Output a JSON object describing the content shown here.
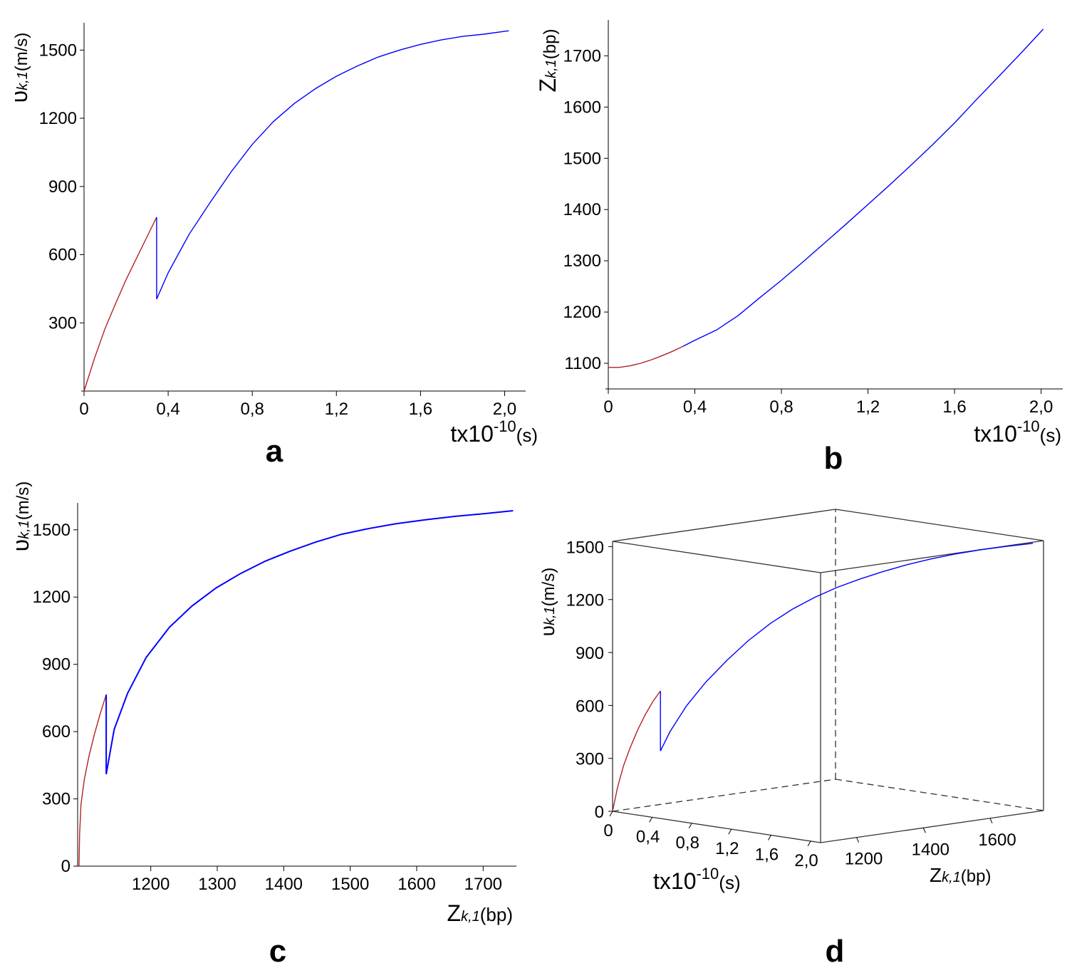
{
  "colors": {
    "phase1": "#b22222",
    "phase2": "#0000ff",
    "axis": "#000000"
  },
  "chart_data": [
    {
      "panel": "a",
      "type": "line",
      "xlabel": {
        "main": "tx10",
        "sup": "-10",
        "sub": "(s)"
      },
      "ylabel": {
        "main": "υ",
        "sub": "k,1",
        "unit": "(m/s)"
      },
      "xlim": [
        0,
        2.1
      ],
      "ylim": [
        0,
        1620
      ],
      "x_ticks": [
        0,
        0.4,
        0.8,
        1.2,
        1.6,
        2.0
      ],
      "x_tick_labels": [
        "0",
        "0,4",
        "0,8",
        "1,2",
        "1,6",
        "2,0"
      ],
      "y_ticks": [
        300,
        600,
        900,
        1200,
        1500
      ],
      "y_tick_labels": [
        "300",
        "600",
        "900",
        "1200",
        "1500"
      ],
      "series": [
        {
          "name": "phase1",
          "color_key": "phase1",
          "x": [
            0,
            0.05,
            0.1,
            0.15,
            0.2,
            0.25,
            0.3,
            0.345
          ],
          "y": [
            0,
            145,
            275,
            385,
            490,
            585,
            680,
            765
          ]
        },
        {
          "name": "phase2",
          "color_key": "phase2",
          "x": [
            0.345,
            0.345,
            0.4,
            0.5,
            0.6,
            0.7,
            0.8,
            0.9,
            1.0,
            1.1,
            1.2,
            1.3,
            1.4,
            1.5,
            1.6,
            1.7,
            1.8,
            1.9,
            2.02
          ],
          "y": [
            765,
            405,
            520,
            690,
            830,
            965,
            1085,
            1185,
            1265,
            1330,
            1385,
            1430,
            1470,
            1500,
            1525,
            1545,
            1560,
            1570,
            1585
          ]
        }
      ]
    },
    {
      "panel": "b",
      "type": "line",
      "xlabel": {
        "main": "tx10",
        "sup": "-10",
        "sub": "(s)"
      },
      "ylabel": {
        "main": "Z",
        "sub": "k,1",
        "unit": "(bp)"
      },
      "xlim": [
        0,
        2.1
      ],
      "ylim": [
        1050,
        1770
      ],
      "x_ticks": [
        0,
        0.4,
        0.8,
        1.2,
        1.6,
        2.0
      ],
      "x_tick_labels": [
        "0",
        "0,4",
        "0,8",
        "1,2",
        "1,6",
        "2,0"
      ],
      "y_ticks": [
        1100,
        1200,
        1300,
        1400,
        1500,
        1600,
        1700
      ],
      "y_tick_labels": [
        "1100",
        "1200",
        "1300",
        "1400",
        "1500",
        "1600",
        "1700"
      ],
      "series": [
        {
          "name": "phase1",
          "color_key": "phase1",
          "x": [
            0,
            0.05,
            0.1,
            0.15,
            0.2,
            0.25,
            0.3,
            0.345
          ],
          "y": [
            1092,
            1092,
            1095,
            1100,
            1107,
            1115,
            1124,
            1133
          ]
        },
        {
          "name": "phase2",
          "color_key": "phase2",
          "x": [
            0.345,
            0.4,
            0.5,
            0.6,
            0.7,
            0.8,
            0.9,
            1.0,
            1.1,
            1.2,
            1.3,
            1.4,
            1.5,
            1.6,
            1.7,
            1.8,
            1.9,
            2.01
          ],
          "y": [
            1133,
            1145,
            1165,
            1193,
            1228,
            1262,
            1298,
            1335,
            1372,
            1410,
            1448,
            1487,
            1527,
            1569,
            1614,
            1658,
            1702,
            1752
          ]
        }
      ]
    },
    {
      "panel": "c",
      "type": "line",
      "xlabel": {
        "main": "Z",
        "sub": "k,1",
        "unit": "(bp)"
      },
      "ylabel": {
        "main": "υ",
        "sub": "k,1",
        "unit": "(m/s)"
      },
      "xlim": [
        1090,
        1750
      ],
      "ylim": [
        0,
        1620
      ],
      "x_ticks": [
        1200,
        1300,
        1400,
        1500,
        1600,
        1700
      ],
      "x_tick_labels": [
        "1200",
        "1300",
        "1400",
        "1500",
        "1600",
        "1700"
      ],
      "y_ticks": [
        0,
        300,
        600,
        900,
        1200,
        1500
      ],
      "y_tick_labels": [
        "0",
        "300",
        "600",
        "900",
        "1200",
        "1500"
      ],
      "series": [
        {
          "name": "phase1",
          "color_key": "phase1",
          "x": [
            1092,
            1093,
            1095,
            1100,
            1107,
            1115,
            1124,
            1133
          ],
          "y": [
            0,
            145,
            275,
            385,
            490,
            585,
            680,
            765
          ]
        },
        {
          "name": "phase2",
          "color_key": "phase2",
          "x": [
            1133,
            1133,
            1145,
            1165,
            1193,
            1228,
            1262,
            1298,
            1335,
            1372,
            1410,
            1448,
            1487,
            1527,
            1569,
            1614,
            1658,
            1702,
            1745
          ],
          "y": [
            765,
            410,
            610,
            770,
            930,
            1065,
            1160,
            1240,
            1305,
            1360,
            1405,
            1445,
            1480,
            1505,
            1527,
            1545,
            1560,
            1572,
            1585
          ]
        }
      ]
    },
    {
      "panel": "d",
      "type": "line",
      "projection": "3d-box",
      "xlabel": {
        "main": "tx10",
        "sup": "-10",
        "sub": "(s)"
      },
      "ylabel": {
        "main": "Z",
        "sub": "k,1",
        "unit": "(bp)"
      },
      "zlabel": {
        "main": "υ",
        "sub": "k,1",
        "unit": "(m/s)"
      },
      "xlim": [
        0,
        2.1
      ],
      "ylim": [
        1092,
        1760
      ],
      "zlim": [
        0,
        1530
      ],
      "x_ticks": [
        0,
        0.4,
        0.8,
        1.2,
        1.6,
        2.0
      ],
      "x_tick_labels": [
        "0",
        "0,4",
        "0,8",
        "1,2",
        "1,6",
        "2,0"
      ],
      "y_ticks": [
        1200,
        1400,
        1600
      ],
      "y_tick_labels": [
        "1200",
        "1400",
        "1600"
      ],
      "z_ticks": [
        0,
        300,
        600,
        900,
        1200,
        1500
      ],
      "z_tick_labels": [
        "0",
        "300",
        "600",
        "900",
        "1200",
        "1500"
      ],
      "series": [
        {
          "name": "phase1",
          "color_key": "phase1",
          "t": [
            0,
            0.05,
            0.1,
            0.15,
            0.2,
            0.25,
            0.3,
            0.345
          ],
          "z": [
            1092,
            1092,
            1095,
            1100,
            1107,
            1115,
            1124,
            1133
          ],
          "v": [
            0,
            140,
            265,
            370,
            470,
            560,
            640,
            700
          ]
        },
        {
          "name": "phase2",
          "color_key": "phase2",
          "t": [
            0.345,
            0.345,
            0.4,
            0.5,
            0.6,
            0.7,
            0.8,
            0.9,
            1.0,
            1.1,
            1.2,
            1.3,
            1.4,
            1.5,
            1.6,
            1.7,
            1.8,
            1.9,
            2.02
          ],
          "z": [
            1133,
            1133,
            1145,
            1165,
            1193,
            1228,
            1262,
            1298,
            1335,
            1372,
            1410,
            1448,
            1487,
            1527,
            1569,
            1614,
            1658,
            1702,
            1752
          ],
          "v": [
            700,
            360,
            470,
            620,
            755,
            880,
            990,
            1085,
            1165,
            1230,
            1285,
            1330,
            1370,
            1405,
            1435,
            1460,
            1480,
            1495,
            1510
          ]
        }
      ]
    }
  ]
}
